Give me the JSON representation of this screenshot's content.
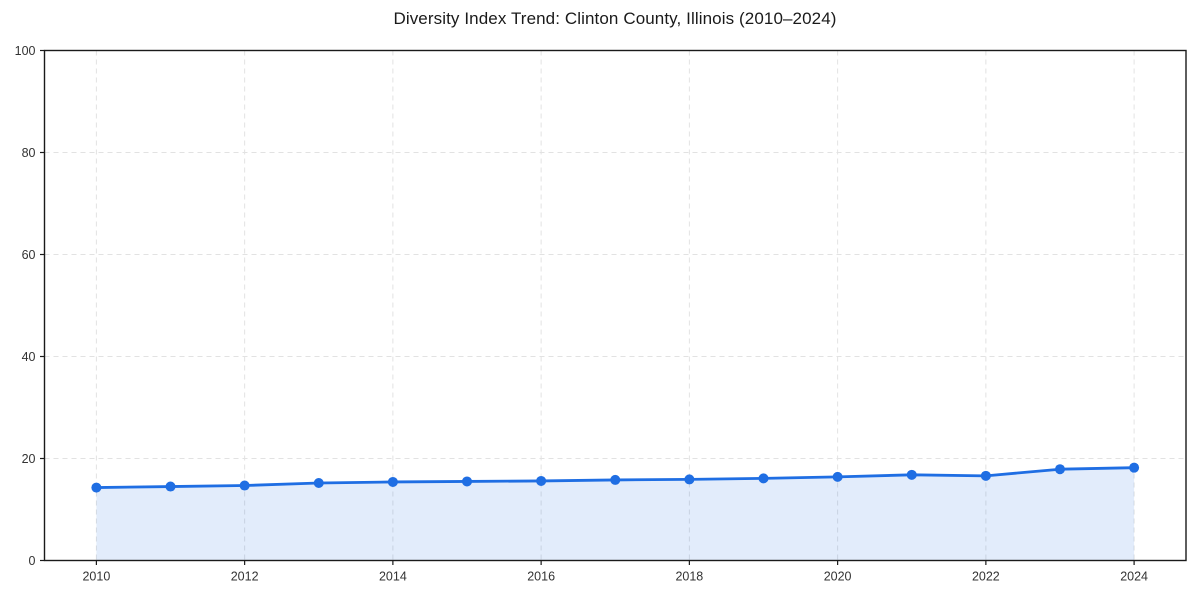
{
  "chart_data": {
    "type": "area",
    "title": "Diversity Index Trend: Clinton County, Illinois (2010–2024)",
    "xlabel": "",
    "ylabel": "",
    "x": [
      2010,
      2011,
      2012,
      2013,
      2014,
      2015,
      2016,
      2017,
      2018,
      2019,
      2020,
      2021,
      2022,
      2023,
      2024
    ],
    "series": [
      {
        "name": "Diversity Index",
        "values": [
          14.3,
          14.5,
          14.7,
          15.2,
          15.4,
          15.5,
          15.6,
          15.8,
          15.9,
          16.1,
          16.4,
          16.8,
          16.6,
          17.9,
          18.2
        ]
      }
    ],
    "xlim": [
      2009.3,
      2024.7
    ],
    "ylim": [
      0,
      100
    ],
    "xticks": [
      2010,
      2012,
      2014,
      2016,
      2018,
      2020,
      2022,
      2024
    ],
    "yticks": [
      0,
      20,
      40,
      60,
      80,
      100
    ],
    "grid": true,
    "grid_style": "dashed",
    "legend": "none",
    "colors": {
      "line": "#1f6ee3",
      "marker": "#1f6ee3",
      "fill": "rgba(31, 110, 227, 0.13)",
      "grid": "#e2e2e2",
      "spine": "#1a1a1a",
      "tick_label": "#333333",
      "background": "#ffffff"
    }
  }
}
